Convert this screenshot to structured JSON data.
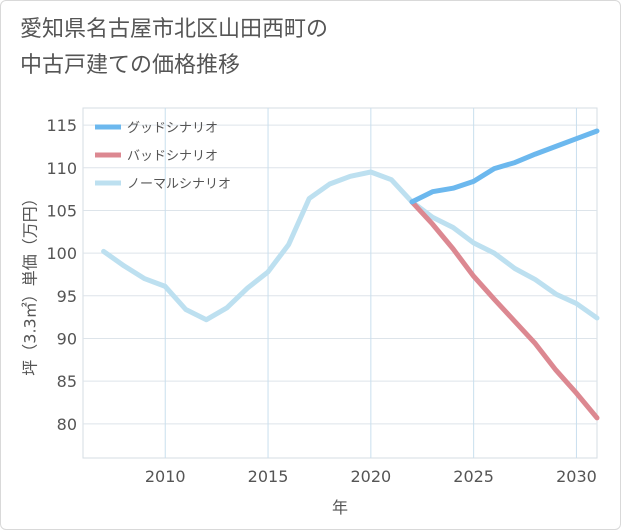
{
  "title_lines": [
    "愛知県名古屋市北区山田西町の",
    "中古戸建ての価格推移"
  ],
  "chart_data": {
    "type": "line",
    "title": "愛知県名古屋市北区山田西町の中古戸建ての価格推移",
    "xlabel": "年",
    "ylabel": "坪（3.3㎡）単価（万円）",
    "xlim": [
      2006,
      2031
    ],
    "ylim": [
      76,
      117
    ],
    "xticks": [
      2010,
      2015,
      2020,
      2025,
      2030
    ],
    "yticks": [
      80,
      85,
      90,
      95,
      100,
      105,
      110,
      115
    ],
    "grid": true,
    "legend_position": "top-left",
    "series": [
      {
        "name": "グッドシナリオ",
        "color": "#6cb8ee",
        "x": [
          2022,
          2023,
          2024,
          2025,
          2026,
          2027,
          2028,
          2029,
          2030,
          2031
        ],
        "y": [
          106.0,
          107.2,
          107.6,
          108.4,
          109.9,
          110.6,
          111.6,
          112.5,
          113.4,
          114.3
        ]
      },
      {
        "name": "バッドシナリオ",
        "color": "#dc8891",
        "x": [
          2022,
          2023,
          2024,
          2025,
          2026,
          2027,
          2028,
          2029,
          2030,
          2031
        ],
        "y": [
          106.0,
          103.4,
          100.5,
          97.3,
          94.6,
          92.0,
          89.4,
          86.3,
          83.6,
          80.7
        ]
      },
      {
        "name": "ノーマルシナリオ",
        "color": "#bde0f0",
        "x": [
          2007,
          2008,
          2009,
          2010,
          2011,
          2012,
          2013,
          2014,
          2015,
          2016,
          2017,
          2018,
          2019,
          2020,
          2021,
          2022,
          2023,
          2024,
          2025,
          2026,
          2027,
          2028,
          2029,
          2030,
          2031
        ],
        "y": [
          100.2,
          98.5,
          97.0,
          96.1,
          93.4,
          92.2,
          93.6,
          95.9,
          97.8,
          101.0,
          106.4,
          108.1,
          109.0,
          109.5,
          108.6,
          106.0,
          104.2,
          103.0,
          101.2,
          100.0,
          98.2,
          96.9,
          95.2,
          94.1,
          92.4
        ]
      }
    ]
  }
}
